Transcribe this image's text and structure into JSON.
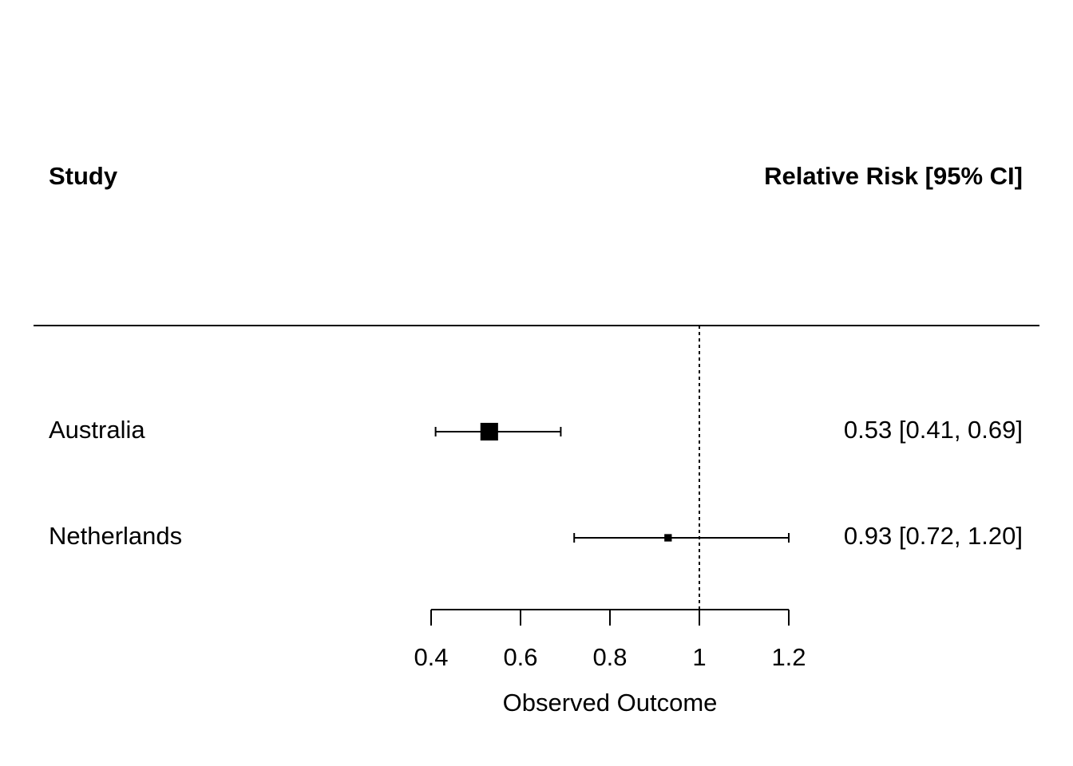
{
  "chart_data": {
    "type": "forest",
    "header_left": "Study",
    "header_right": "Relative Risk [95% CI]",
    "xlabel": "Observed Outcome",
    "xlim": [
      0.4,
      1.2
    ],
    "xticks": [
      0.4,
      0.6,
      0.8,
      1,
      1.2
    ],
    "xtick_labels": [
      "0.4",
      "0.6",
      "0.8",
      "1",
      "1.2"
    ],
    "reference_line": 1,
    "studies": [
      {
        "name": "Australia",
        "estimate": 0.53,
        "ci_low": 0.41,
        "ci_high": 0.69,
        "label": "0.53 [0.41, 0.69]",
        "weight": 0.85
      },
      {
        "name": "Netherlands",
        "estimate": 0.93,
        "ci_low": 0.72,
        "ci_high": 1.2,
        "label": "0.93 [0.72, 1.20]",
        "weight": 0.15
      }
    ]
  }
}
